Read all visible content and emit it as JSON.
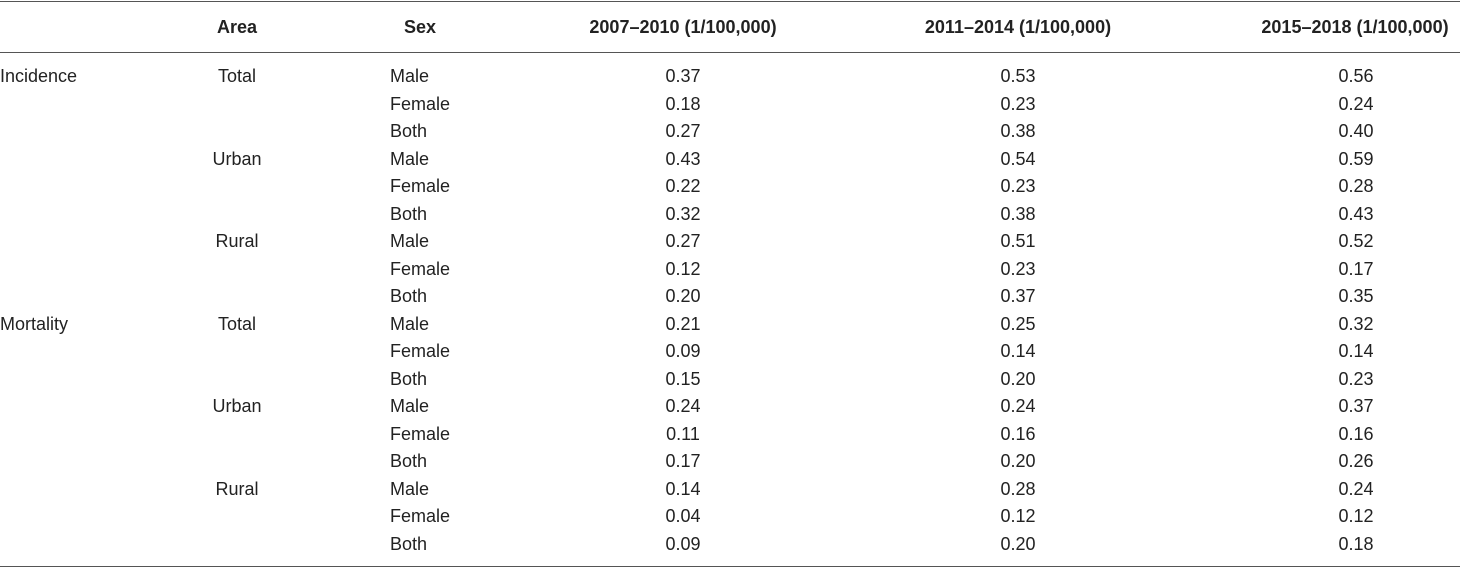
{
  "table": {
    "header": [
      null,
      "Area",
      "Sex",
      "2007–2010 (1/100,000)",
      "2011–2014 (1/100,000)",
      "2015–2018 (1/100,000)"
    ],
    "rows": [
      [
        "Incidence",
        "Total",
        "Male",
        "0.37",
        "0.53",
        "0.56"
      ],
      [
        null,
        null,
        "Female",
        "0.18",
        "0.23",
        "0.24"
      ],
      [
        null,
        null,
        "Both",
        "0.27",
        "0.38",
        "0.40"
      ],
      [
        null,
        "Urban",
        "Male",
        "0.43",
        "0.54",
        "0.59"
      ],
      [
        null,
        null,
        "Female",
        "0.22",
        "0.23",
        "0.28"
      ],
      [
        null,
        null,
        "Both",
        "0.32",
        "0.38",
        "0.43"
      ],
      [
        null,
        "Rural",
        "Male",
        "0.27",
        "0.51",
        "0.52"
      ],
      [
        null,
        null,
        "Female",
        "0.12",
        "0.23",
        "0.17"
      ],
      [
        null,
        null,
        "Both",
        "0.20",
        "0.37",
        "0.35"
      ],
      [
        "Mortality",
        "Total",
        "Male",
        "0.21",
        "0.25",
        "0.32"
      ],
      [
        null,
        null,
        "Female",
        "0.09",
        "0.14",
        "0.14"
      ],
      [
        null,
        null,
        "Both",
        "0.15",
        "0.20",
        "0.23"
      ],
      [
        null,
        "Urban",
        "Male",
        "0.24",
        "0.24",
        "0.37"
      ],
      [
        null,
        null,
        "Female",
        "0.11",
        "0.16",
        "0.16"
      ],
      [
        null,
        null,
        "Both",
        "0.17",
        "0.20",
        "0.26"
      ],
      [
        null,
        "Rural",
        "Male",
        "0.14",
        "0.28",
        "0.24"
      ],
      [
        null,
        null,
        "Female",
        "0.04",
        "0.12",
        "0.12"
      ],
      [
        null,
        null,
        "Both",
        "0.09",
        "0.20",
        "0.18"
      ]
    ]
  }
}
